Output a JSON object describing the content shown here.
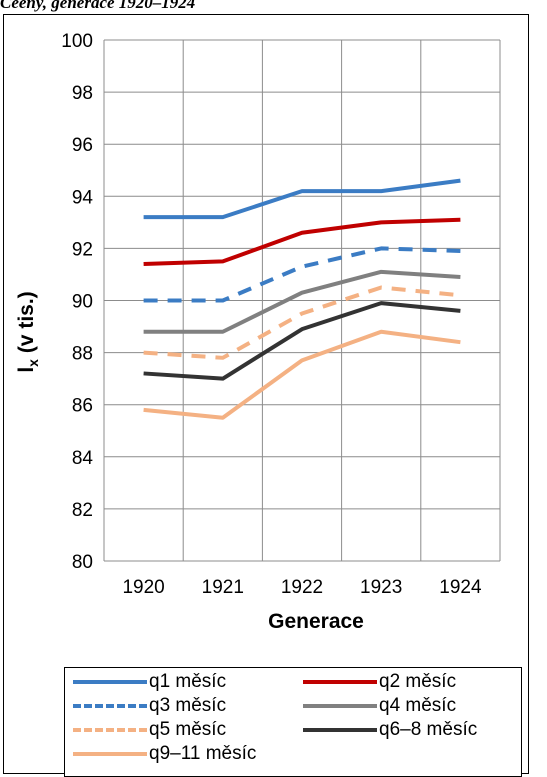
{
  "caption": "Ceeny, generace 1920–1924",
  "chart_data": {
    "type": "line",
    "title": "",
    "xlabel": "Generace",
    "ylabel": "lx (v tis.)",
    "ylabel_main": "l",
    "ylabel_sub": "x",
    "ylabel_rest": " (v tis.)",
    "categories": [
      "1920",
      "1921",
      "1922",
      "1923",
      "1924"
    ],
    "ylim": [
      80,
      100
    ],
    "yticks": [
      "80",
      "82",
      "84",
      "86",
      "88",
      "90",
      "92",
      "94",
      "96",
      "98",
      "100"
    ],
    "grid": true,
    "legend_position": "bottom",
    "series": [
      {
        "name": "q1 měsíc",
        "color": "#3b7cc4",
        "dash": "solid",
        "values": [
          93.2,
          93.2,
          94.2,
          94.2,
          94.6
        ]
      },
      {
        "name": "q2 měsíc",
        "color": "#c00000",
        "dash": "solid",
        "values": [
          91.4,
          91.5,
          92.6,
          93.0,
          93.1
        ]
      },
      {
        "name": "q3 měsíc",
        "color": "#3b7cc4",
        "dash": "dashed",
        "values": [
          90.0,
          90.0,
          91.3,
          92.0,
          91.9
        ]
      },
      {
        "name": "q4 měsíc",
        "color": "#808080",
        "dash": "solid",
        "values": [
          88.8,
          88.8,
          90.3,
          91.1,
          90.9
        ]
      },
      {
        "name": "q5 měsíc",
        "color": "#f4b183",
        "dash": "dashed",
        "values": [
          88.0,
          87.8,
          89.5,
          90.5,
          90.2
        ]
      },
      {
        "name": "q6–8 měsíc",
        "color": "#333333",
        "dash": "solid",
        "values": [
          87.2,
          87.0,
          88.9,
          89.9,
          89.6
        ]
      },
      {
        "name": "q9–11 měsíc",
        "color": "#f4b183",
        "dash": "solid",
        "values": [
          85.8,
          85.5,
          87.7,
          88.8,
          88.4
        ]
      }
    ]
  }
}
